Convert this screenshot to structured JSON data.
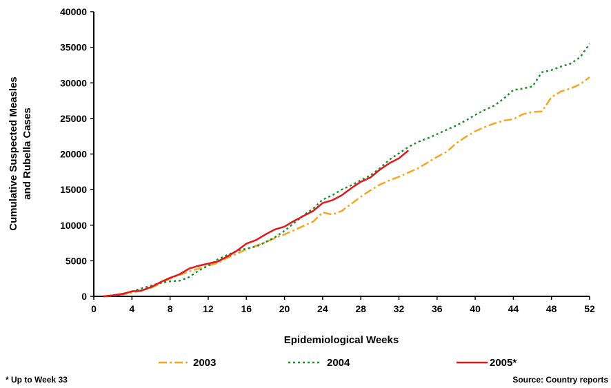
{
  "chart_data": {
    "type": "line",
    "xlabel": "Epidemiological Weeks",
    "ylabel": [
      "Cumulative Suspected Measles",
      "and Rubella Cases"
    ],
    "xlim": [
      0,
      52
    ],
    "ylim": [
      0,
      40000
    ],
    "xticks": [
      0,
      4,
      8,
      12,
      16,
      20,
      24,
      28,
      32,
      36,
      40,
      44,
      48,
      52
    ],
    "yticks": [
      0,
      5000,
      10000,
      15000,
      20000,
      25000,
      30000,
      35000,
      40000
    ],
    "grid": false,
    "legend": "bottom",
    "series": [
      {
        "name": "2003",
        "color": "#F5A623",
        "style": "dash-dot",
        "x": [
          1,
          2,
          3,
          4,
          5,
          6,
          7,
          8,
          9,
          10,
          11,
          12,
          13,
          14,
          15,
          16,
          17,
          18,
          19,
          20,
          21,
          22,
          23,
          24,
          25,
          26,
          27,
          28,
          29,
          30,
          31,
          32,
          33,
          34,
          35,
          36,
          37,
          38,
          39,
          40,
          41,
          42,
          43,
          44,
          45,
          46,
          47,
          48,
          49,
          50,
          51,
          52
        ],
        "values": [
          0,
          100,
          250,
          500,
          800,
          1200,
          1800,
          2500,
          3000,
          3500,
          3900,
          4300,
          4700,
          5400,
          6000,
          6600,
          7100,
          7600,
          8200,
          8700,
          9300,
          9900,
          10500,
          11800,
          11500,
          12000,
          13000,
          14000,
          14900,
          15700,
          16300,
          16800,
          17400,
          18000,
          18800,
          19600,
          20300,
          21500,
          22400,
          23200,
          23800,
          24300,
          24700,
          24900,
          25600,
          25900,
          26000,
          28000,
          28800,
          29200,
          29800,
          30800
        ]
      },
      {
        "name": "2004",
        "color": "#1E8C2D",
        "style": "dotted",
        "x": [
          1,
          2,
          3,
          4,
          5,
          6,
          7,
          8,
          9,
          10,
          11,
          12,
          13,
          14,
          15,
          16,
          17,
          18,
          19,
          20,
          21,
          22,
          23,
          24,
          25,
          26,
          27,
          28,
          29,
          30,
          31,
          32,
          33,
          34,
          35,
          36,
          37,
          38,
          39,
          40,
          41,
          42,
          43,
          44,
          45,
          46,
          47,
          48,
          49,
          50,
          51,
          52
        ],
        "values": [
          0,
          100,
          300,
          700,
          1100,
          1500,
          1900,
          2100,
          2200,
          2700,
          3600,
          4300,
          5200,
          5800,
          6400,
          6700,
          7000,
          7600,
          8300,
          9200,
          10300,
          11400,
          12300,
          13600,
          14200,
          15000,
          15600,
          16300,
          17000,
          18000,
          19200,
          20100,
          21000,
          21700,
          22200,
          22800,
          23400,
          24000,
          24700,
          25500,
          26200,
          26800,
          27800,
          29000,
          29200,
          29500,
          31500,
          31800,
          32300,
          32700,
          33600,
          35500
        ]
      },
      {
        "name": "2005*",
        "color": "#E3161B",
        "style": "solid",
        "x": [
          1,
          2,
          3,
          4,
          5,
          6,
          7,
          8,
          9,
          10,
          11,
          12,
          13,
          14,
          15,
          16,
          17,
          18,
          19,
          20,
          21,
          22,
          23,
          24,
          25,
          26,
          27,
          28,
          29,
          30,
          31,
          32,
          33
        ],
        "values": [
          0,
          150,
          350,
          700,
          800,
          1300,
          2000,
          2600,
          3100,
          3900,
          4300,
          4600,
          4900,
          5600,
          6400,
          7400,
          7900,
          8700,
          9400,
          9800,
          10600,
          11300,
          12000,
          13100,
          13500,
          14200,
          15200,
          16100,
          16700,
          17800,
          18700,
          19400,
          20500
        ]
      }
    ],
    "footnote": "* Up to Week 33",
    "source": "Source: Country reports"
  }
}
